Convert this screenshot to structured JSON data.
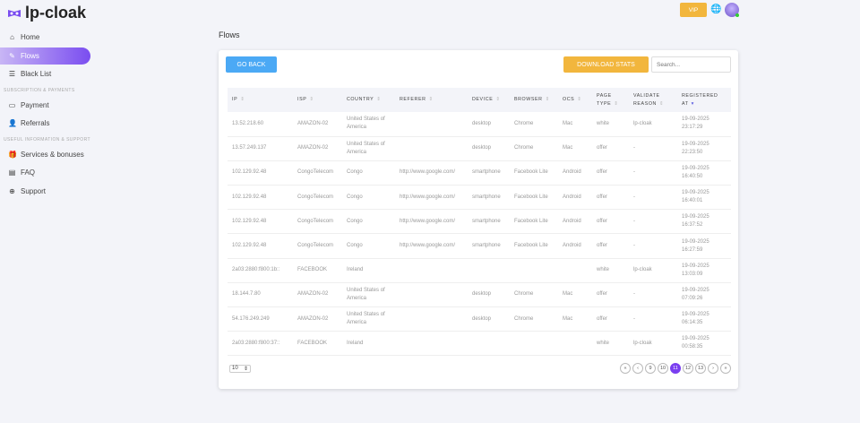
{
  "app": {
    "name": "lp-cloak"
  },
  "sidebar": {
    "items": [
      {
        "label": "Home",
        "icon": "home-icon"
      },
      {
        "label": "Flows",
        "icon": "flows-icon",
        "active": true
      },
      {
        "label": "Black List",
        "icon": "list-icon"
      }
    ],
    "section1": "SUBSCRIPTION & PAYMENTS",
    "items2": [
      {
        "label": "Payment",
        "icon": "credit-card-icon"
      },
      {
        "label": "Referrals",
        "icon": "user-plus-icon"
      }
    ],
    "section2": "USEFUL INFORMATION & SUPPORT",
    "items3": [
      {
        "label": "Services & bonuses",
        "icon": "gift-icon"
      },
      {
        "label": "FAQ",
        "icon": "faq-icon"
      },
      {
        "label": "Support",
        "icon": "lifebuoy-icon"
      }
    ]
  },
  "header": {
    "vip": "VIP",
    "accent": "#f2b63d"
  },
  "page": {
    "title": "Flows",
    "go_back": "GO BACK",
    "download": "DOWNLOAD STATS",
    "search_placeholder": "Search..."
  },
  "table": {
    "columns": [
      "IP",
      "ISP",
      "COUNTRY",
      "REFERER",
      "DEVICE",
      "BROWSER",
      "OCS",
      "PAGE TYPE",
      "VALIDATE REASON",
      "REGISTERED AT"
    ],
    "rows": [
      [
        "13.52.218.60",
        "AMAZON-02",
        "United States of America",
        "",
        "desktop",
        "Chrome",
        "Mac",
        "white",
        "lp-cloak",
        "19-09-2025 23:17:29"
      ],
      [
        "13.57.249.137",
        "AMAZON-02",
        "United States of America",
        "",
        "desktop",
        "Chrome",
        "Mac",
        "offer",
        "-",
        "19-09-2025 22:23:50"
      ],
      [
        "102.129.92.48",
        "CongoTelecom",
        "Congo",
        "http://www.google.com/",
        "smartphone",
        "Facebook Lite",
        "Android",
        "offer",
        "-",
        "19-09-2025 16:40:50"
      ],
      [
        "102.129.92.48",
        "CongoTelecom",
        "Congo",
        "http://www.google.com/",
        "smartphone",
        "Facebook Lite",
        "Android",
        "offer",
        "-",
        "19-09-2025 16:40:01"
      ],
      [
        "102.129.92.48",
        "CongoTelecom",
        "Congo",
        "http://www.google.com/",
        "smartphone",
        "Facebook Lite",
        "Android",
        "offer",
        "-",
        "19-09-2025 16:37:52"
      ],
      [
        "102.129.92.48",
        "CongoTelecom",
        "Congo",
        "http://www.google.com/",
        "smartphone",
        "Facebook Lite",
        "Android",
        "offer",
        "-",
        "19-09-2025 16:27:59"
      ],
      [
        "2a03:2880:f800:1b::",
        "FACEBOOK",
        "Ireland",
        "",
        "",
        "",
        "",
        "white",
        "lp-cloak",
        "19-09-2025 13:03:09"
      ],
      [
        "18.144.7.80",
        "AMAZON-02",
        "United States of America",
        "",
        "desktop",
        "Chrome",
        "Mac",
        "offer",
        "-",
        "19-09-2025 07:09:26"
      ],
      [
        "54.176.249.249",
        "AMAZON-02",
        "United States of America",
        "",
        "desktop",
        "Chrome",
        "Mac",
        "offer",
        "-",
        "19-09-2025 06:14:35"
      ],
      [
        "2a03:2880:f800:37::",
        "FACEBOOK",
        "Ireland",
        "",
        "",
        "",
        "",
        "white",
        "lp-cloak",
        "19-09-2025 00:58:35"
      ]
    ]
  },
  "footer": {
    "page_size": "10",
    "pages": [
      "«",
      "‹",
      "9",
      "10",
      "11",
      "12",
      "13",
      "›",
      "»"
    ],
    "current": "11"
  }
}
